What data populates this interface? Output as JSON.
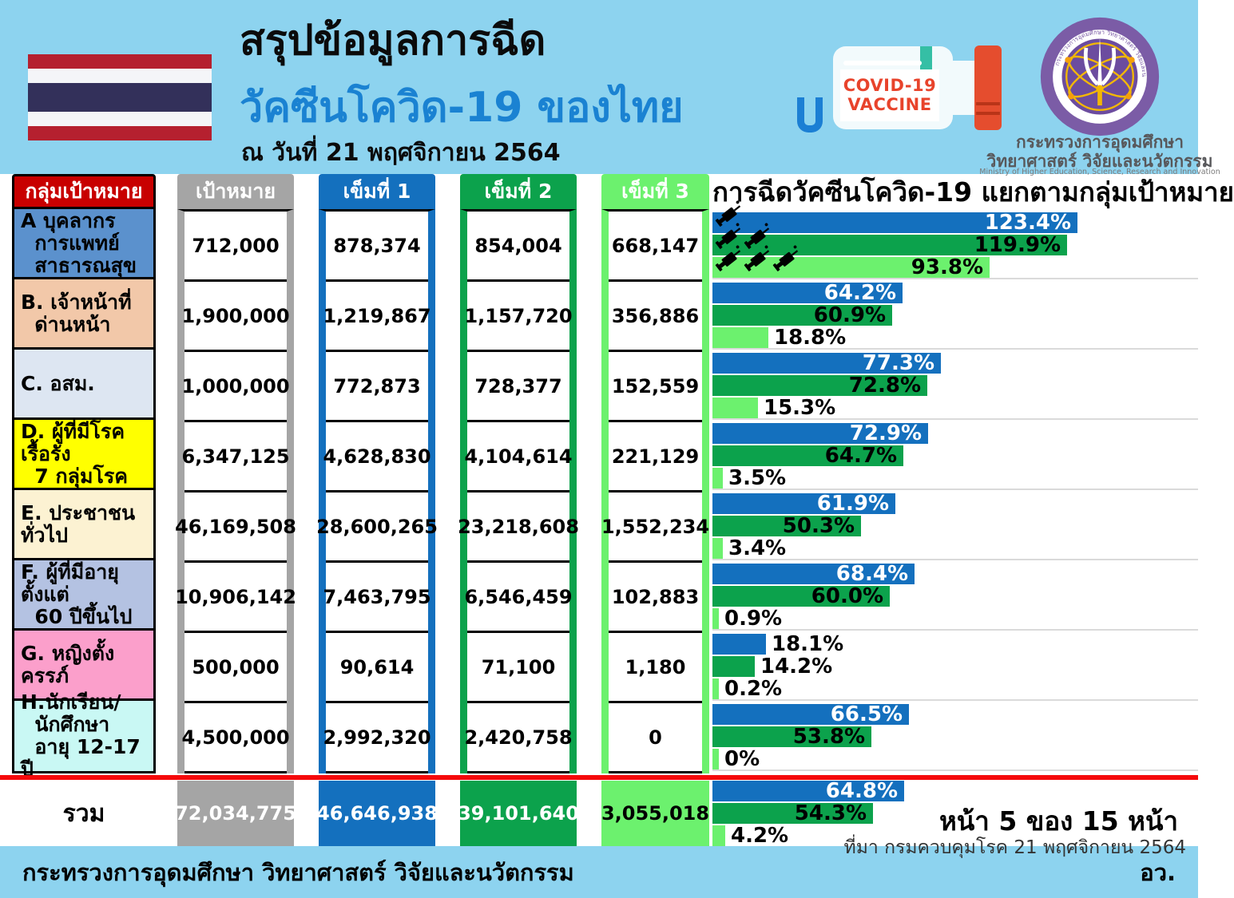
{
  "page": {
    "band_color": "#8DD3EF",
    "accent_blue": "#1470BE",
    "accent_green": "#0CA24C",
    "accent_light_green": "#6CF16E",
    "accent_gray": "#A5A5A5",
    "header_red": "#C80000",
    "red_divider_color": "#F50A0C"
  },
  "header": {
    "title_black": "สรุปข้อมูลการฉีด",
    "title_blue": "วัคซีนโควิด-19 ของไทย",
    "date_line": "ณ วันที่ 21 พฤศจิกายน 2564",
    "bottle": {
      "label_line1": "COVID-19",
      "label_line2": "VACCINE"
    },
    "logo": {
      "ring_text": "กระทรวงการอุดมศึกษา วิทยาศาสตร์ วิจัยและนวัตกรรม",
      "name_line1": "กระทรวงการอุดมศึกษา",
      "name_line2": "วิทยาศาสตร์ วิจัยและนวัตกรรม",
      "name_en": "Ministry of Higher Education, Science, Research and Innovation"
    }
  },
  "table": {
    "group_header": "กลุ่มเป้าหมาย",
    "columns": [
      {
        "label": "เป้าหมาย",
        "color": "#A5A5A5",
        "text_color": "#FFFFFF"
      },
      {
        "label": "เข็มที่ 1",
        "color": "#1470BE",
        "text_color": "#FFFFFF"
      },
      {
        "label": "เข็มที่ 2",
        "color": "#0CA24C",
        "text_color": "#FFFFFF"
      },
      {
        "label": "เข็มที่ 3",
        "color": "#6CF16E",
        "text_color": "#FFFFFF"
      }
    ],
    "rows": [
      {
        "label": "A บุคลากร\n  การแพทย์\n  สาธารณสุข",
        "label_bg": "#5B91CD",
        "values": [
          "712,000",
          "878,374",
          "854,004",
          "668,147"
        ],
        "pct": [
          "123.4%",
          "119.9%",
          "93.8%"
        ]
      },
      {
        "label": "B. เจ้าหน้าที่\n  ด่านหน้า",
        "label_bg": "#F2C8A9",
        "values": [
          "1,900,000",
          "1,219,867",
          "1,157,720",
          "356,886"
        ],
        "pct": [
          "64.2%",
          "60.9%",
          "18.8%"
        ]
      },
      {
        "label": "C. อสม.",
        "label_bg": "#DDE6F2",
        "values": [
          "1,000,000",
          "772,873",
          "728,377",
          "152,559"
        ],
        "pct": [
          "77.3%",
          "72.8%",
          "15.3%"
        ]
      },
      {
        "label": "D. ผู้ที่มีโรคเรื้อรัง\n  7 กลุ่มโรค",
        "label_bg": "#FFFF00",
        "values": [
          "6,347,125",
          "4,628,830",
          "4,104,614",
          "221,129"
        ],
        "pct": [
          "72.9%",
          "64.7%",
          "3.5%"
        ]
      },
      {
        "label": "E. ประชาชนทั่วไป",
        "label_bg": "#FCF2D2",
        "values": [
          "46,169,508",
          "28,600,265",
          "23,218,608",
          "1,552,234"
        ],
        "pct": [
          "61.9%",
          "50.3%",
          "3.4%"
        ]
      },
      {
        "label": "F. ผู้ที่มีอายุตั้งแต่\n  60 ปีขึ้นไป",
        "label_bg": "#B4C2E2",
        "values": [
          "10,906,142",
          "7,463,795",
          "6,546,459",
          "102,883"
        ],
        "pct": [
          "68.4%",
          "60.0%",
          "0.9%"
        ]
      },
      {
        "label": "G. หญิงตั้งครรภ์",
        "label_bg": "#FB9FCB",
        "values": [
          "500,000",
          "90,614",
          "71,100",
          "1,180"
        ],
        "pct": [
          "18.1%",
          "14.2%",
          "0.2%"
        ]
      },
      {
        "label": "H.นักเรียน/\n  นักศึกษา\n  อายุ 12-17 ปี",
        "label_bg": "#C9F8F4",
        "values": [
          "4,500,000",
          "2,992,320",
          "2,420,758",
          "0"
        ],
        "pct": [
          "66.5%",
          "53.8%",
          "0%"
        ]
      }
    ],
    "total": {
      "label": "รวม",
      "values": [
        "72,034,775",
        "46,646,938",
        "39,101,640",
        "3,055,018"
      ],
      "pct": [
        "64.8%",
        "54.3%",
        "4.2%"
      ]
    }
  },
  "chart": {
    "title": "การฉีดวัคซีนโควิด-19 แยกตามกลุ่มเป้าหมาย"
  },
  "chart_data": {
    "type": "bar",
    "orientation": "horizontal",
    "title": "การฉีดวัคซีนโควิด-19 แยกตามกลุ่มเป้าหมาย",
    "unit": "%",
    "xlim": [
      0,
      130
    ],
    "grid": false,
    "legend": "syringe icons on group A bars: 1 syringe = dose 1, 2 = dose 2, 3 = dose 3",
    "categories": [
      "A บุคลากรการแพทย์สาธารณสุข",
      "B. เจ้าหน้าที่ด่านหน้า",
      "C. อสม.",
      "D. ผู้ที่มีโรคเรื้อรัง 7 กลุ่มโรค",
      "E. ประชาชนทั่วไป",
      "F. ผู้ที่มีอายุตั้งแต่ 60 ปีขึ้นไป",
      "G. หญิงตั้งครรภ์",
      "H.นักเรียน/นักศึกษา อายุ 12-17 ปี",
      "รวม"
    ],
    "series": [
      {
        "name": "เข็มที่ 1",
        "color": "#1470BE",
        "values": [
          123.4,
          64.2,
          77.3,
          72.9,
          61.9,
          68.4,
          18.1,
          66.5,
          64.8
        ]
      },
      {
        "name": "เข็มที่ 2",
        "color": "#0CA24C",
        "values": [
          119.9,
          60.9,
          72.8,
          64.7,
          50.3,
          60.0,
          14.2,
          53.8,
          54.3
        ]
      },
      {
        "name": "เข็มที่ 3",
        "color": "#6CF16E",
        "values": [
          93.8,
          18.8,
          15.3,
          3.5,
          3.4,
          0.9,
          0.2,
          0,
          4.2
        ]
      }
    ]
  },
  "footer": {
    "page_info": "หน้า 5 ของ 15 หน้า",
    "source": "ที่มา กรมควบคุมโรค 21 พฤศจิกายน 2564",
    "ministry_line": "กระทรวงการอุดมศึกษา วิทยาศาสตร์ วิจัยและนวัตกรรม",
    "ministry_abbrev": "อว."
  }
}
